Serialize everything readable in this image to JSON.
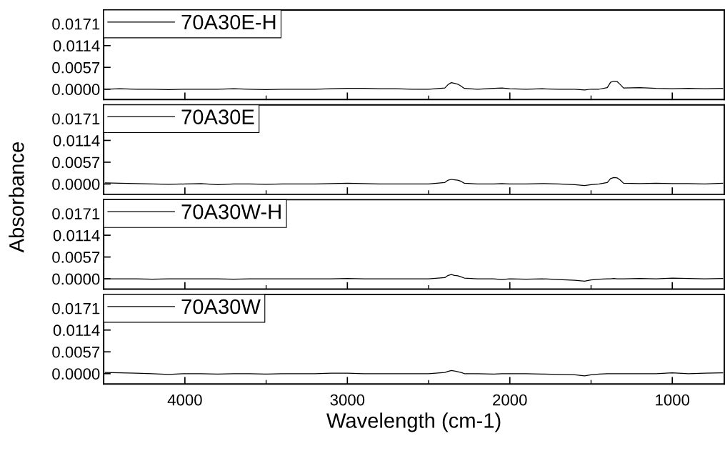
{
  "chart_data": [
    {
      "type": "line",
      "ylabel": "Absorbance",
      "xlim": [
        4500,
        680
      ],
      "xticks": [
        4000,
        3000,
        2000,
        1000
      ],
      "ylim": [
        -0.0027,
        0.0207
      ],
      "yticks": [
        {
          "value": 0,
          "label": "0.0000"
        },
        {
          "value": 0.0057,
          "label": "0.0057"
        },
        {
          "value": 0.0114,
          "label": "0.0114"
        },
        {
          "value": 0.0171,
          "label": "0.0171"
        }
      ],
      "tick_labels": "y",
      "legend": "top left",
      "grid": false,
      "marker": "none",
      "line_style": "solid",
      "x": [
        4490,
        4400,
        4300,
        4200,
        4100,
        4000,
        3900,
        3800,
        3700,
        3600,
        3500,
        3400,
        3300,
        3200,
        3100,
        3000,
        2900,
        2800,
        2700,
        2600,
        2500,
        2400,
        2380,
        2360,
        2340,
        2320,
        2300,
        2280,
        2200,
        2100,
        2050,
        2000,
        1900,
        1800,
        1700,
        1600,
        1540,
        1500,
        1450,
        1400,
        1380,
        1360,
        1340,
        1320,
        1300,
        1200,
        1100,
        1000,
        900,
        800,
        690
      ],
      "series": [
        {
          "name": "70A30E-H",
          "color": "#000000",
          "values": [
            0,
            0.0001,
            0,
            0,
            -0.0001,
            0,
            0,
            0,
            0.0001,
            0,
            -0.0001,
            0,
            0,
            0,
            0.0001,
            0.0002,
            0.0002,
            0.0001,
            0.0001,
            0,
            0,
            0.0003,
            0.0012,
            0.0017,
            0.0015,
            0.0013,
            0.0008,
            0.0002,
            0,
            0.0002,
            0.0003,
            0.0001,
            0,
            0.0001,
            0,
            0,
            -0.0002,
            0,
            0,
            0.0004,
            0.0018,
            0.0021,
            0.002,
            0.0012,
            0.0003,
            0.0004,
            0.0002,
            0.0001,
            0.0002,
            0.0001,
            0.0002
          ]
        }
      ]
    },
    {
      "type": "line",
      "xlim": [
        4500,
        680
      ],
      "xticks": [
        4000,
        3000,
        2000,
        1000
      ],
      "ylim": [
        -0.0027,
        0.0207
      ],
      "yticks": [
        {
          "value": 0,
          "label": "0.0000"
        },
        {
          "value": 0.0057,
          "label": "0.0057"
        },
        {
          "value": 0.0114,
          "label": "0.0114"
        },
        {
          "value": 0.0171,
          "label": "0.0171"
        }
      ],
      "tick_labels": "y",
      "legend": "top left",
      "grid": false,
      "marker": "none",
      "line_style": "solid",
      "x": [
        4490,
        4400,
        4300,
        4200,
        4100,
        4000,
        3900,
        3800,
        3700,
        3600,
        3500,
        3400,
        3300,
        3200,
        3100,
        3000,
        2900,
        2800,
        2700,
        2600,
        2500,
        2400,
        2380,
        2360,
        2340,
        2320,
        2300,
        2280,
        2200,
        2100,
        2050,
        2000,
        1900,
        1800,
        1700,
        1600,
        1540,
        1500,
        1450,
        1400,
        1380,
        1360,
        1340,
        1320,
        1300,
        1200,
        1100,
        1000,
        900,
        800,
        690
      ],
      "series": [
        {
          "name": "70A30E",
          "color": "#000000",
          "values": [
            0.0003,
            0.0002,
            0.0001,
            0,
            -0.0001,
            0,
            0.0001,
            -0.0002,
            0,
            0,
            -0.0001,
            0,
            0,
            0,
            0.0001,
            0.0002,
            0.0001,
            0,
            0,
            0,
            0,
            0.0004,
            0.001,
            0.0012,
            0.0011,
            0.001,
            0.0007,
            0.0002,
            0,
            0,
            0.0001,
            0,
            0,
            0.0001,
            0,
            -0.0002,
            -0.0004,
            -0.0002,
            0,
            0.0004,
            0.0014,
            0.0017,
            0.0016,
            0.001,
            0.0002,
            0.0001,
            0.0002,
            0.0001,
            0.0001,
            0,
            0.0002
          ]
        }
      ]
    },
    {
      "type": "line",
      "xlim": [
        4500,
        680
      ],
      "xticks": [
        4000,
        3000,
        2000,
        1000
      ],
      "ylim": [
        -0.0027,
        0.0207
      ],
      "yticks": [
        {
          "value": 0,
          "label": "0.0000"
        },
        {
          "value": 0.0057,
          "label": "0.0057"
        },
        {
          "value": 0.0114,
          "label": "0.0114"
        },
        {
          "value": 0.0171,
          "label": "0.0171"
        }
      ],
      "tick_labels": "y",
      "legend": "top left",
      "grid": false,
      "marker": "none",
      "line_style": "solid",
      "x": [
        4490,
        4400,
        4300,
        4200,
        4100,
        4000,
        3900,
        3800,
        3700,
        3600,
        3500,
        3400,
        3300,
        3200,
        3100,
        3000,
        2900,
        2800,
        2700,
        2600,
        2500,
        2400,
        2380,
        2360,
        2340,
        2320,
        2300,
        2280,
        2200,
        2100,
        2050,
        2000,
        1900,
        1800,
        1700,
        1600,
        1540,
        1500,
        1450,
        1400,
        1380,
        1360,
        1340,
        1320,
        1300,
        1200,
        1100,
        1000,
        900,
        800,
        690
      ],
      "series": [
        {
          "name": "70A30W-H",
          "color": "#000000",
          "values": [
            0,
            0,
            0,
            -0.0001,
            0,
            0,
            0,
            0,
            -0.0001,
            0,
            0,
            0,
            0,
            0,
            0,
            0.0001,
            0,
            0,
            0,
            0,
            0,
            0.0003,
            0.0009,
            0.0011,
            0.0009,
            0.0008,
            0.0005,
            0.0002,
            0,
            0,
            -0.0002,
            0,
            -0.0001,
            0,
            -0.0002,
            -0.0004,
            -0.0006,
            -0.0003,
            -0.0001,
            0,
            0,
            0.0001,
            0,
            0,
            0,
            0.0001,
            0,
            0.0002,
            0.0001,
            0,
            0.0001
          ]
        }
      ]
    },
    {
      "type": "line",
      "xlabel": "Wavelength (cm-1)",
      "xlim": [
        4500,
        680
      ],
      "xticks": [
        4000,
        3000,
        2000,
        1000
      ],
      "ylim": [
        -0.0027,
        0.0207
      ],
      "yticks": [
        {
          "value": 0,
          "label": "0.0000"
        },
        {
          "value": 0.0057,
          "label": "0.0057"
        },
        {
          "value": 0.0114,
          "label": "0.0114"
        },
        {
          "value": 0.0171,
          "label": "0.0171"
        }
      ],
      "legend": "top left",
      "grid": false,
      "marker": "none",
      "line_style": "solid",
      "x": [
        4490,
        4400,
        4300,
        4200,
        4100,
        4000,
        3900,
        3800,
        3700,
        3600,
        3500,
        3400,
        3300,
        3200,
        3100,
        3000,
        2900,
        2800,
        2700,
        2600,
        2500,
        2400,
        2380,
        2360,
        2340,
        2320,
        2300,
        2280,
        2200,
        2100,
        2050,
        2000,
        1900,
        1800,
        1700,
        1600,
        1540,
        1500,
        1450,
        1400,
        1380,
        1360,
        1340,
        1320,
        1300,
        1200,
        1100,
        1000,
        900,
        800,
        690
      ],
      "series": [
        {
          "name": "70A30W",
          "color": "#000000",
          "values": [
            0.0003,
            0.0002,
            0.0001,
            0,
            -0.0002,
            0,
            0,
            -0.0001,
            0,
            0,
            -0.0001,
            0,
            0,
            0,
            0.0001,
            0.0001,
            0,
            0,
            0,
            0,
            0,
            0.0003,
            0.0006,
            0.0008,
            0.0007,
            0.0005,
            0.0003,
            0,
            0,
            -0.0001,
            0,
            0,
            0,
            -0.0001,
            -0.0002,
            -0.0003,
            -0.0006,
            -0.0003,
            -0.0001,
            0,
            0,
            0,
            0,
            0,
            0,
            0,
            0,
            0.0002,
            0,
            0.0001,
            0.0002
          ]
        }
      ]
    }
  ]
}
